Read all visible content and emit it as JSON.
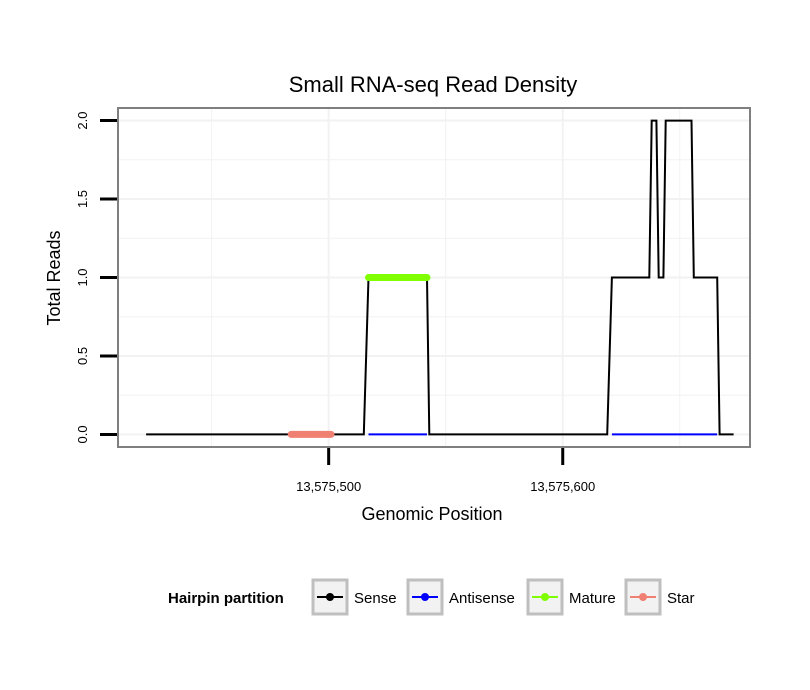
{
  "chart_data": {
    "type": "line",
    "title": "Small RNA-seq Read Density",
    "xlabel": "Genomic Position",
    "ylabel": "Total Reads",
    "xlim": [
      13575410,
      13575680
    ],
    "ylim": [
      -0.08,
      2.08
    ],
    "x_ticks": [
      13575500,
      13575600
    ],
    "x_tick_labels": [
      "13,575,500",
      "13,575,600"
    ],
    "y_ticks": [
      0,
      0.5,
      1,
      1.5,
      2
    ],
    "y_tick_labels": [
      "0.0",
      "0.5",
      "1.0",
      "1.5",
      "2.0"
    ],
    "grid": true,
    "legend": {
      "position": "bottom",
      "title": "Hairpin partition",
      "entries": [
        "Sense",
        "Antisense",
        "Mature",
        "Star"
      ]
    },
    "series": [
      {
        "name": "Sense",
        "color": "#000000",
        "x": [
          13575422,
          13575515,
          13575517,
          13575542,
          13575543,
          13575619,
          13575621,
          13575637,
          13575638,
          13575640,
          13575641,
          13575643,
          13575644,
          13575655,
          13575656,
          13575666,
          13575667,
          13575673
        ],
        "y": [
          0,
          0,
          1,
          1,
          0,
          0,
          1,
          1,
          2,
          2,
          1,
          1,
          2,
          2,
          1,
          1,
          0,
          0
        ]
      },
      {
        "name": "Antisense",
        "color": "#0000ff",
        "x": [
          13575517,
          13575542,
          13575621,
          13575666
        ],
        "y": [
          0,
          0,
          0,
          0
        ],
        "segments": [
          [
            0,
            1
          ],
          [
            2,
            3
          ]
        ]
      },
      {
        "name": "Mature",
        "color": "#7fff00",
        "x": [
          13575517,
          13575542
        ],
        "y": [
          1,
          1
        ]
      },
      {
        "name": "Star",
        "color": "#f08072",
        "x": [
          13575484,
          13575501
        ],
        "y": [
          0,
          0
        ]
      }
    ]
  }
}
